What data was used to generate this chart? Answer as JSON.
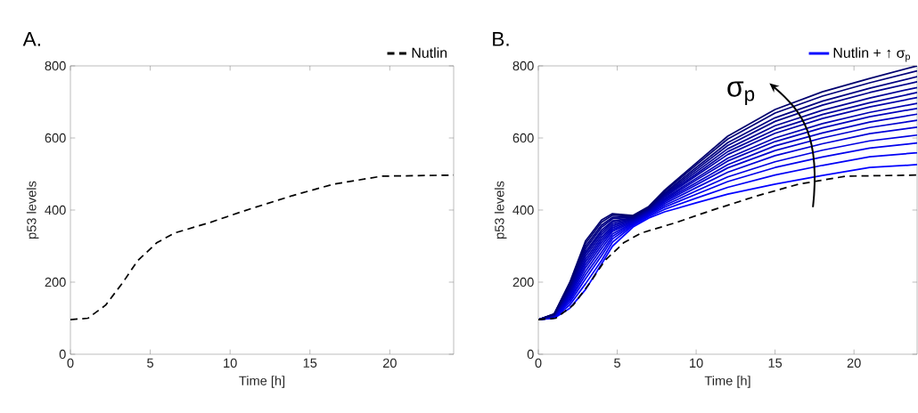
{
  "chart_data": [
    {
      "type": "line",
      "title": "A.",
      "xlabel": "Time [h]",
      "ylabel": "p53 levels",
      "x": [
        0,
        1.1,
        2.2,
        3.3,
        4.2,
        5.4,
        6.5,
        8.7,
        10.9,
        13.9,
        16.5,
        19.5,
        24
      ],
      "series": [
        {
          "name": "Nutlin",
          "color": "#000000",
          "line_style": "dashed",
          "values": [
            96,
            100,
            136,
            200,
            259,
            309,
            336,
            365,
            398,
            440,
            472,
            494,
            497
          ]
        }
      ],
      "xlim": [
        0,
        24
      ],
      "ylim": [
        0,
        800
      ],
      "xticks": [
        0,
        5,
        10,
        15,
        20
      ],
      "yticks": [
        0,
        200,
        400,
        600,
        800
      ],
      "legend": "top right",
      "line_style": "solid"
    },
    {
      "type": "line",
      "title": "B.",
      "xlabel": "Time [h]",
      "ylabel": "p53 levels",
      "x": [
        0,
        1,
        2,
        3,
        4,
        4.7,
        6,
        7,
        8,
        10,
        12,
        15,
        18,
        21,
        24
      ],
      "series": [
        {
          "name": "Nutlin + ↑ σ$_{p}$",
          "color": "#0000ff",
          "values": [
            96,
            100,
            128,
            180,
            250,
            300,
            353,
            378,
            395,
            420,
            444,
            472,
            496,
            518,
            526
          ]
        },
        {
          "color": "#0000f5",
          "values": [
            96,
            101,
            137,
            196,
            260,
            311,
            357,
            382,
            402,
            433,
            463,
            497,
            524,
            548,
            559
          ]
        },
        {
          "color": "#0000ec",
          "values": [
            96,
            103,
            144,
            210,
            273,
            320,
            360,
            385,
            408,
            444,
            479,
            518,
            547,
            572,
            586
          ]
        },
        {
          "color": "#0000e2",
          "values": [
            96,
            104,
            150,
            221,
            283,
            327,
            363,
            388,
            413,
            453,
            492,
            534,
            566,
            592,
            608
          ]
        },
        {
          "color": "#0000d8",
          "values": [
            96,
            105,
            155,
            231,
            293,
            334,
            365,
            390,
            418,
            462,
            505,
            551,
            584,
            612,
            630
          ]
        },
        {
          "color": "#0000cf",
          "values": [
            96,
            105,
            160,
            241,
            302,
            341,
            367,
            392,
            422,
            470,
            517,
            565,
            600,
            629,
            649
          ]
        },
        {
          "color": "#0000c5",
          "values": [
            96,
            106,
            165,
            249,
            310,
            346,
            369,
            394,
            426,
            476,
            526,
            578,
            614,
            644,
            666
          ]
        },
        {
          "color": "#0000bb",
          "values": [
            96,
            107,
            169,
            257,
            317,
            351,
            371,
            396,
            429,
            483,
            536,
            590,
            628,
            659,
            682
          ]
        },
        {
          "color": "#0000b2",
          "values": [
            96,
            107,
            173,
            264,
            324,
            356,
            373,
            398,
            432,
            488,
            544,
            600,
            640,
            671,
            696
          ]
        },
        {
          "color": "#0000a8",
          "values": [
            96,
            108,
            177,
            272,
            331,
            361,
            375,
            400,
            436,
            495,
            554,
            613,
            654,
            686,
            712
          ]
        },
        {
          "color": "#00009e",
          "values": [
            96,
            109,
            181,
            279,
            338,
            366,
            376,
            401,
            439,
            500,
            562,
            623,
            665,
            698,
            726
          ]
        },
        {
          "color": "#000095",
          "values": [
            96,
            109,
            184,
            285,
            344,
            370,
            378,
            403,
            442,
            506,
            570,
            634,
            677,
            711,
            740
          ]
        },
        {
          "color": "#00008b",
          "values": [
            96,
            110,
            189,
            293,
            352,
            376,
            380,
            405,
            445,
            512,
            579,
            646,
            691,
            726,
            756
          ]
        },
        {
          "color": "#000081",
          "values": [
            96,
            111,
            192,
            300,
            358,
            380,
            382,
            406,
            448,
            518,
            587,
            656,
            702,
            738,
            770
          ]
        },
        {
          "color": "#000078",
          "values": [
            96,
            111,
            196,
            308,
            366,
            386,
            383,
            408,
            452,
            525,
            597,
            669,
            716,
            753,
            786
          ]
        },
        {
          "color": "#00006e",
          "values": [
            96,
            112,
            200,
            315,
            372,
            390,
            385,
            410,
            455,
            530,
            605,
            679,
            728,
            765,
            800
          ]
        },
        {
          "color": "#000000",
          "line_style": "dashed",
          "x": [
            0,
            1.1,
            2.2,
            3.3,
            4.2,
            5.4,
            6.5,
            8.7,
            10.9,
            13.9,
            16.5,
            19.5,
            24
          ],
          "values": [
            96,
            100,
            136,
            200,
            259,
            309,
            336,
            365,
            398,
            440,
            472,
            494,
            497
          ]
        }
      ],
      "annotations": [
        "σ$_{p}$"
      ],
      "xlim": [
        0,
        24
      ],
      "ylim": [
        0,
        800
      ],
      "xticks": [
        0,
        5,
        10,
        15,
        20
      ],
      "yticks": [
        0,
        200,
        400,
        600,
        800
      ],
      "legend": "top right",
      "line_style": "solid"
    }
  ]
}
